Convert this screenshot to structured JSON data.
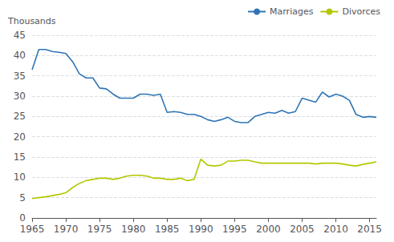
{
  "chart_data": {
    "type": "line",
    "ylabel": "Thousands",
    "x": [
      1965,
      1966,
      1967,
      1968,
      1969,
      1970,
      1971,
      1972,
      1973,
      1974,
      1975,
      1976,
      1977,
      1978,
      1979,
      1980,
      1981,
      1982,
      1983,
      1984,
      1985,
      1986,
      1987,
      1988,
      1989,
      1990,
      1991,
      1992,
      1993,
      1994,
      1995,
      1996,
      1997,
      1998,
      1999,
      2000,
      2001,
      2002,
      2003,
      2004,
      2005,
      2006,
      2007,
      2008,
      2009,
      2010,
      2011,
      2012,
      2013,
      2014,
      2015,
      2016
    ],
    "series": [
      {
        "name": "Marriages",
        "color": "#2e75b6",
        "values": [
          36.5,
          41.5,
          41.5,
          41.0,
          40.8,
          40.5,
          38.5,
          35.5,
          34.5,
          34.5,
          32.0,
          31.8,
          30.5,
          29.5,
          29.5,
          29.5,
          30.5,
          30.5,
          30.2,
          30.5,
          26.0,
          26.2,
          26.0,
          25.5,
          25.5,
          25.0,
          24.2,
          23.8,
          24.2,
          24.8,
          23.8,
          23.5,
          23.5,
          25.0,
          25.5,
          26.0,
          25.8,
          26.5,
          25.8,
          26.2,
          29.5,
          29.0,
          28.5,
          31.0,
          29.8,
          30.5,
          30.0,
          29.0,
          25.5,
          24.8,
          25.0,
          24.8
        ]
      },
      {
        "name": "Divorces",
        "color": "#b3c800",
        "values": [
          4.8,
          5.0,
          5.2,
          5.5,
          5.8,
          6.2,
          7.5,
          8.5,
          9.2,
          9.5,
          9.8,
          9.8,
          9.5,
          9.8,
          10.3,
          10.5,
          10.5,
          10.3,
          9.8,
          9.8,
          9.5,
          9.5,
          9.8,
          9.2,
          9.5,
          14.5,
          13.0,
          12.8,
          13.0,
          14.0,
          14.0,
          14.2,
          14.2,
          13.8,
          13.5,
          13.5,
          13.5,
          13.5,
          13.5,
          13.5,
          13.5,
          13.5,
          13.3,
          13.5,
          13.5,
          13.5,
          13.3,
          13.0,
          12.8,
          13.2,
          13.5,
          13.8
        ]
      }
    ],
    "xlim": [
      1965,
      2016
    ],
    "ylim": [
      0,
      45
    ],
    "xticks": [
      1965,
      1970,
      1975,
      1980,
      1985,
      1990,
      1995,
      2000,
      2005,
      2010,
      2015
    ],
    "yticks": [
      0,
      5,
      10,
      15,
      20,
      25,
      30,
      35,
      40,
      45
    ],
    "grid": true,
    "legend": "upper right"
  }
}
